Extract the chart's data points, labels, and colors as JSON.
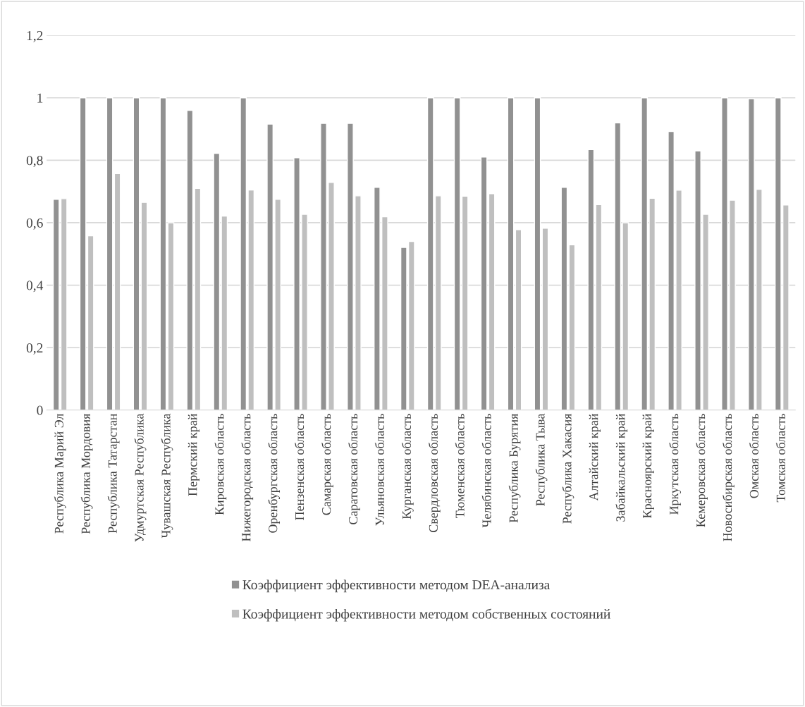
{
  "chart_data": {
    "type": "bar",
    "categories": [
      "Республика Марий Эл",
      "Республика Мордовия",
      "Республика Татарстан",
      "Удмуртская Республика",
      "Чувашская Республика",
      "Пермский край",
      "Кировская область",
      "Нижегородская область",
      "Оренбургская область",
      "Пензенская область",
      "Самарская область",
      "Саратовская область",
      "Ульяновская область",
      "Курганская область",
      "Свердловская область",
      "Тюменская область",
      "Челябинская область",
      "Республика Бурятия",
      "Республика Тыва",
      "Республика Хакасия",
      "Алтайский край",
      "Забайкальский край",
      "Красноярский край",
      "Иркутская область",
      "Кемеровская область",
      "Новосибирская область",
      "Омская область",
      "Томская область"
    ],
    "series": [
      {
        "name": "Коэффициент эффективности методом DEA-анализа",
        "color": "#919191",
        "values": [
          0.675,
          1,
          1,
          1,
          1,
          0.96,
          0.822,
          1,
          0.916,
          0.808,
          0.918,
          0.918,
          0.713,
          0.521,
          1,
          1,
          0.81,
          1,
          1,
          0.713,
          0.834,
          0.92,
          1,
          0.892,
          0.83,
          1,
          0.997,
          1
        ]
      },
      {
        "name": "Коэффициент эффективности методом собственных состояний",
        "color": "#bfbfbf",
        "values": [
          0.677,
          0.558,
          0.757,
          0.665,
          0.6,
          0.71,
          0.621,
          0.705,
          0.675,
          0.627,
          0.729,
          0.686,
          0.619,
          0.54,
          0.686,
          0.685,
          0.693,
          0.578,
          0.582,
          0.529,
          0.658,
          0.6,
          0.678,
          0.704,
          0.627,
          0.672,
          0.707,
          0.657
        ]
      }
    ],
    "ylim": [
      0,
      1.2
    ],
    "yticks": [
      {
        "value": 0,
        "label": "0"
      },
      {
        "value": 0.2,
        "label": "0,2"
      },
      {
        "value": 0.4,
        "label": "0,4"
      },
      {
        "value": 0.6,
        "label": "0,6"
      },
      {
        "value": 0.8,
        "label": "0,8"
      },
      {
        "value": 1,
        "label": "1"
      },
      {
        "value": 1.2,
        "label": "1,2"
      }
    ],
    "grid": "y",
    "legend": "bottom"
  }
}
